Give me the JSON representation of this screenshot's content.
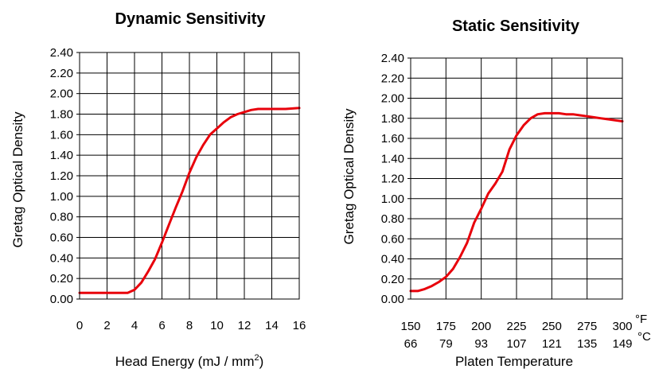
{
  "chart_data": [
    {
      "type": "line",
      "title": "Dynamic Sensitivity",
      "xlabel": "Head Energy (mJ / mm",
      "xlabel_sup": "2",
      "xlabel_tail": ")",
      "ylabel": "Gretag Optical Density",
      "xlim": [
        0,
        16
      ],
      "ylim": [
        0,
        2.4
      ],
      "grid": true,
      "x_ticks": [
        "0",
        "2",
        "4",
        "6",
        "8",
        "10",
        "12",
        "14",
        "16"
      ],
      "y_ticks": [
        "0.00",
        "0.20",
        "0.40",
        "0.60",
        "0.80",
        "1.00",
        "1.20",
        "1.40",
        "1.60",
        "1.80",
        "2.00",
        "2.20",
        "2.40"
      ],
      "series": [
        {
          "color": "#e8000b",
          "x": [
            0,
            1,
            2,
            3,
            3.5,
            4,
            4.5,
            5,
            5.5,
            6,
            6.5,
            7,
            7.5,
            8,
            8.5,
            9,
            9.5,
            10,
            10.5,
            11,
            11.5,
            12,
            12.5,
            13,
            14,
            15,
            16
          ],
          "y": [
            0.06,
            0.06,
            0.06,
            0.06,
            0.06,
            0.09,
            0.16,
            0.27,
            0.39,
            0.55,
            0.72,
            0.89,
            1.05,
            1.23,
            1.38,
            1.5,
            1.6,
            1.66,
            1.72,
            1.77,
            1.8,
            1.82,
            1.84,
            1.85,
            1.85,
            1.85,
            1.86
          ]
        }
      ]
    },
    {
      "type": "line",
      "title": "Static Sensitivity",
      "xlabel": "Platen Temperature",
      "ylabel": "Gretag Optical Density",
      "xlim": [
        150,
        300
      ],
      "ylim": [
        0,
        2.4
      ],
      "grid": true,
      "x_ticks": [
        "150",
        "175",
        "200",
        "225",
        "250",
        "275",
        "300"
      ],
      "x_ticks_secondary": [
        "66",
        "79",
        "93",
        "107",
        "121",
        "135",
        "149"
      ],
      "x_unit_primary": "°F",
      "x_unit_secondary": "°C",
      "y_ticks": [
        "0.00",
        "0.20",
        "0.40",
        "0.60",
        "0.80",
        "1.00",
        "1.20",
        "1.40",
        "1.60",
        "1.80",
        "2.00",
        "2.20",
        "2.40"
      ],
      "series": [
        {
          "color": "#e8000b",
          "x": [
            150,
            155,
            160,
            165,
            170,
            175,
            180,
            185,
            190,
            195,
            200,
            205,
            210,
            215,
            220,
            225,
            230,
            235,
            240,
            245,
            250,
            255,
            260,
            265,
            270,
            275,
            280,
            285,
            290,
            295,
            300
          ],
          "y": [
            0.08,
            0.08,
            0.1,
            0.13,
            0.17,
            0.22,
            0.3,
            0.42,
            0.56,
            0.76,
            0.9,
            1.05,
            1.15,
            1.27,
            1.49,
            1.63,
            1.73,
            1.8,
            1.84,
            1.85,
            1.85,
            1.85,
            1.84,
            1.84,
            1.83,
            1.82,
            1.81,
            1.8,
            1.79,
            1.78,
            1.77
          ]
        }
      ]
    }
  ]
}
